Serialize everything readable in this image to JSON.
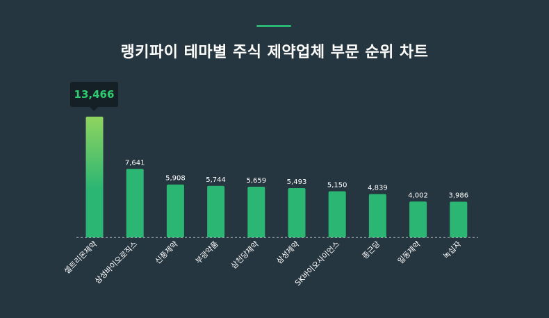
{
  "title": "랭키파이 테마별 주식 제약업체 부문 순위 차트",
  "colors": {
    "background": "#263640",
    "bar": "#2bb673",
    "bar_highlight_top": "#8fd45f",
    "accent": "#2bb673",
    "tooltip_bg": "#151f26",
    "tooltip_text": "#2ecc71",
    "label_text": "#ffffff",
    "axis_line": "#cfd8dc"
  },
  "tooltip": {
    "category": "셀트리온제약",
    "value_label": "13,466"
  },
  "chart_data": {
    "type": "bar",
    "title": "랭키파이 테마별 주식 제약업체 부문 순위 차트",
    "categories": [
      "셀트리온제약",
      "삼성바이오로직스",
      "신풍제약",
      "부광약품",
      "삼천당제약",
      "삼성제약",
      "SK바이오사이언스",
      "종근당",
      "일동제약",
      "녹십자"
    ],
    "values": [
      13466,
      7641,
      5908,
      5744,
      5659,
      5493,
      5150,
      4839,
      4002,
      3986
    ],
    "value_labels": [
      "13,466",
      "7,641",
      "5,908",
      "5,744",
      "5,659",
      "5,493",
      "5,150",
      "4,839",
      "4,002",
      "3,986"
    ],
    "ylim": [
      0,
      13466
    ],
    "grid": false,
    "legend": "none",
    "xlabel": "",
    "ylabel": ""
  }
}
